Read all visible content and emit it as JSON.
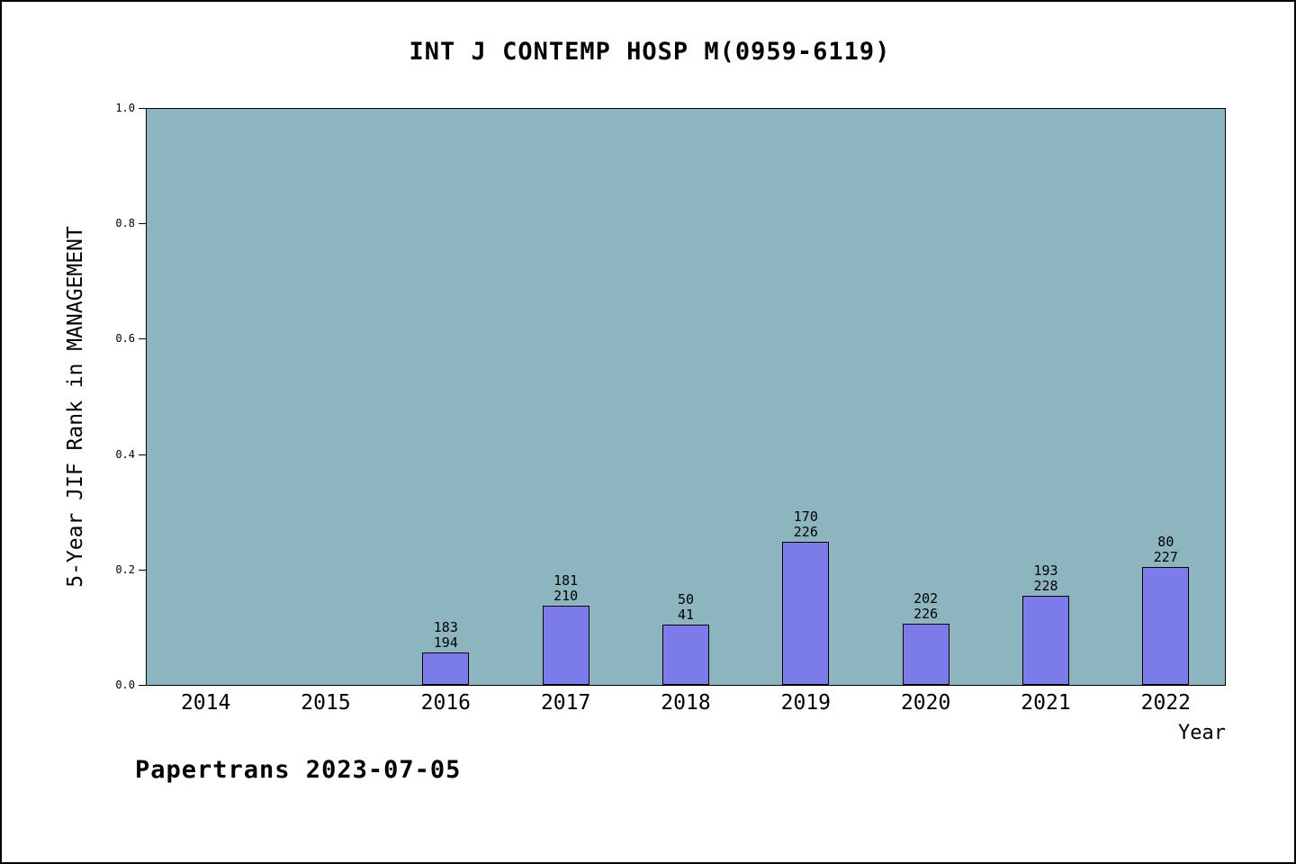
{
  "title": "INT J CONTEMP HOSP M(0959-6119)",
  "footer": "Papertrans 2023-07-05",
  "chart_data": {
    "type": "bar",
    "title": "INT J CONTEMP HOSP M(0959-6119)",
    "xlabel": "Year",
    "ylabel": "5-Year JIF Rank in MANAGEMENT",
    "categories": [
      "2014",
      "2015",
      "2016",
      "2017",
      "2018",
      "2019",
      "2020",
      "2021",
      "2022"
    ],
    "ylim": [
      0.0,
      1.0
    ],
    "yticks": [
      "0.0",
      "0.2",
      "0.4",
      "0.6",
      "0.8",
      "1.0"
    ],
    "grid": false,
    "legend": "none",
    "plot_bg_color": "#8db5c0",
    "bar_color": "#7b7bea",
    "bar_border_color": "#000000",
    "bars": [
      {
        "category": "2016",
        "value": 0.057,
        "label_top": "183",
        "label_bottom": "194"
      },
      {
        "category": "2017",
        "value": 0.138,
        "label_top": "181",
        "label_bottom": "210"
      },
      {
        "category": "2018",
        "value": 0.105,
        "label_top": "50",
        "label_bottom": "41"
      },
      {
        "category": "2019",
        "value": 0.248,
        "label_top": "170",
        "label_bottom": "226"
      },
      {
        "category": "2020",
        "value": 0.106,
        "label_top": "202",
        "label_bottom": "226"
      },
      {
        "category": "2021",
        "value": 0.154,
        "label_top": "193",
        "label_bottom": "228"
      },
      {
        "category": "2022",
        "value": 0.205,
        "label_top": "80",
        "label_bottom": "227"
      }
    ]
  }
}
